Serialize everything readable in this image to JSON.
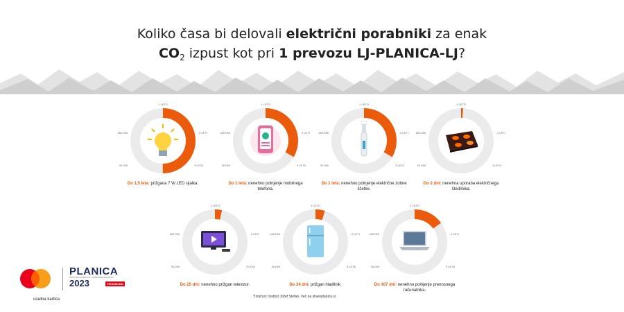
{
  "header": {
    "line1_pre": "Koliko časa bi delovali ",
    "line1_bold": "električni porabniki",
    "line1_post": " za enak",
    "line2_co": "CO",
    "line2_sub": "2",
    "line2_mid": " izpust kot pri ",
    "line2_bold": "1 prevozu LJ-PLANICA-LJ",
    "line2_post": "?"
  },
  "ticks": {
    "top": "1 LETO",
    "right": "2 LETI",
    "bottom_right": "3 LETA",
    "bottom_left": "30 DNI",
    "left": "180 DNI"
  },
  "items": [
    {
      "icon": "lightbulb-icon",
      "bold": "Do 1,5 leta:",
      "text": " prižgana 7 W LED sijalka.",
      "fraction": 0.5
    },
    {
      "icon": "smartphone-icon",
      "bold": "Do 1 leta:",
      "text": " nenehno polnjenje mobilnega telefona.",
      "fraction": 0.333
    },
    {
      "icon": "toothbrush-icon",
      "bold": "Do 1 leta:",
      "text": " nenehno polnjenje električne zobne ščetke.",
      "fraction": 0.333
    },
    {
      "icon": "cooktop-icon",
      "bold": "Do 2 dni:",
      "text": " nenehna uporaba električnega štedilnika.",
      "fraction": 0.004
    },
    {
      "icon": "television-icon",
      "bold": "Do 25 dni:",
      "text": " nenehno prižgan televizor.",
      "fraction": 0.035
    },
    {
      "icon": "fridge-icon",
      "bold": "Do 34 dni:",
      "text": " prižgan hladilnik.",
      "fraction": 0.047
    },
    {
      "icon": "laptop-icon",
      "bold": "Do 107 dni:",
      "text": " nenehno polnjenje prenosnega računalnika.",
      "fraction": 0.15
    }
  ],
  "footnote": "*Izračuni: Institut Jožef Stefan. Več na shareplanica.si",
  "partner": {
    "label": "uradna kartica",
    "brand": "PLANICA",
    "tagline": "SVETOVNO PRVENSTVO V NORDIJSKEM SMUČANJU",
    "year": "2023",
    "sponsor": "VIESSMANN"
  },
  "colors": {
    "accent": "#ea5b0c",
    "ring_bg": "#ebebeb"
  }
}
